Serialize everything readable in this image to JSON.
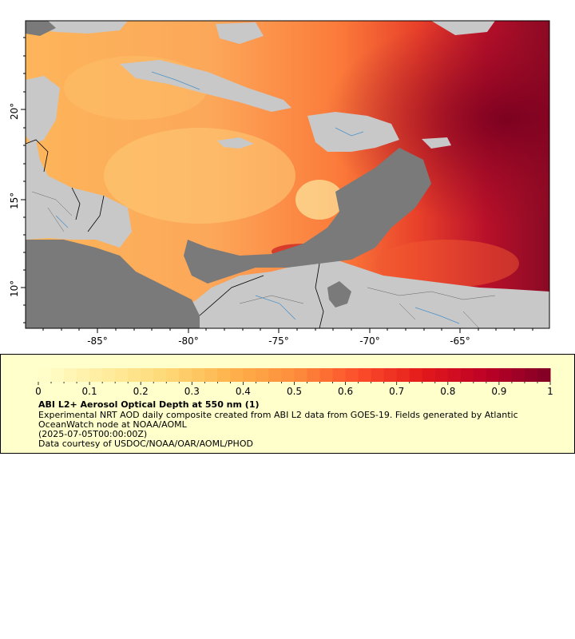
{
  "map": {
    "lat_labels": [
      "20°",
      "15°",
      "10°"
    ],
    "lon_labels": [
      "-85°",
      "-80°",
      "-75°",
      "-70°",
      "-65°"
    ],
    "colors": {
      "land": "#c8c8c8",
      "no_data": "#7a7a7a",
      "borders": "#000000",
      "rivers": "#4a90c8"
    }
  },
  "legend": {
    "title": "ABI L2+ Aerosol Optical Depth at 550 nm (1)",
    "description": "Experimental NRT AOD daily composite created from ABI L2 data from GOES-19. Fields generated by Atlantic OceanWatch node at NOAA/AOML",
    "time": "(2025-07-05T00:00:00Z)",
    "credit": "Data courtesy of USDOC/NOAA/OAR/AOML/PHOD",
    "tick_labels": [
      "0",
      "0.1",
      "0.2",
      "0.3",
      "0.4",
      "0.5",
      "0.6",
      "0.7",
      "0.8",
      "0.9",
      "1"
    ],
    "range": [
      0,
      1
    ],
    "colormap": [
      "#ffffcc",
      "#ffeda0",
      "#fed976",
      "#feb24c",
      "#fd8d3c",
      "#fc4e2a",
      "#e31a1c",
      "#bd0026",
      "#800026"
    ]
  }
}
